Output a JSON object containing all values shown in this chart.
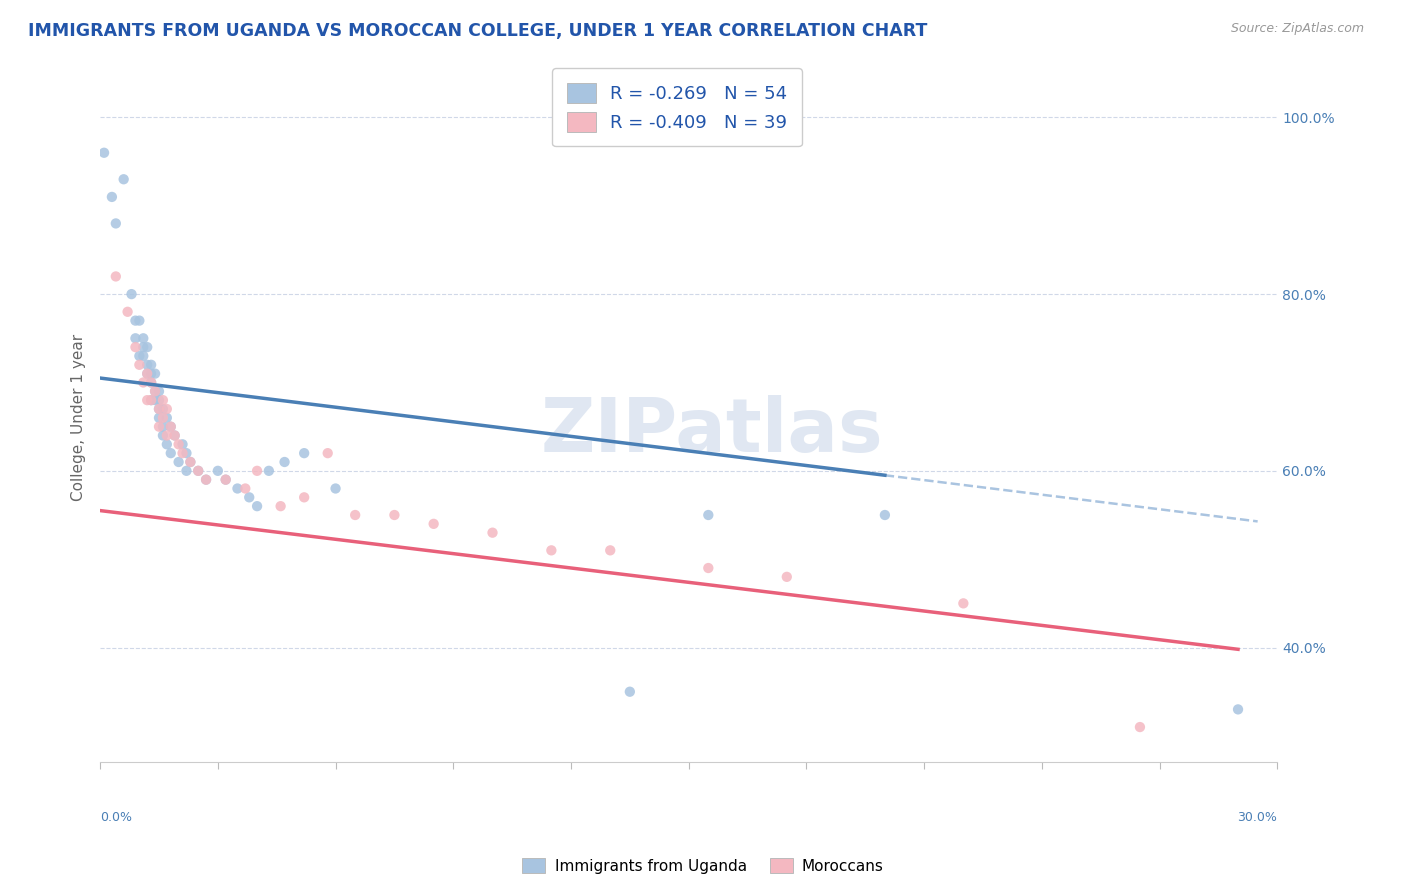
{
  "title": "IMMIGRANTS FROM UGANDA VS MOROCCAN COLLEGE, UNDER 1 YEAR CORRELATION CHART",
  "source": "Source: ZipAtlas.com",
  "legend_label1": "Immigrants from Uganda",
  "legend_label2": "Moroccans",
  "r1": -0.269,
  "n1": 54,
  "r2": -0.409,
  "n2": 39,
  "blue_color": "#a8c4e0",
  "pink_color": "#f4b8c1",
  "blue_line_color": "#4a7fb5",
  "pink_line_color": "#e8607a",
  "dash_color": "#aac4e0",
  "watermark": "ZIPatlas",
  "bg_color": "#ffffff",
  "grid_color": "#d0d8e8",
  "x_min": 0.0,
  "x_max": 0.3,
  "y_min": 0.27,
  "y_max": 1.05,
  "uganda_x": [
    0.001,
    0.003,
    0.004,
    0.006,
    0.008,
    0.009,
    0.009,
    0.01,
    0.01,
    0.011,
    0.011,
    0.011,
    0.012,
    0.012,
    0.012,
    0.013,
    0.013,
    0.013,
    0.013,
    0.014,
    0.014,
    0.014,
    0.015,
    0.015,
    0.015,
    0.015,
    0.016,
    0.016,
    0.016,
    0.017,
    0.017,
    0.018,
    0.018,
    0.019,
    0.02,
    0.021,
    0.022,
    0.022,
    0.023,
    0.025,
    0.027,
    0.03,
    0.032,
    0.035,
    0.038,
    0.04,
    0.043,
    0.047,
    0.052,
    0.06,
    0.135,
    0.155,
    0.2,
    0.29
  ],
  "uganda_y": [
    0.96,
    0.91,
    0.88,
    0.93,
    0.8,
    0.75,
    0.77,
    0.73,
    0.77,
    0.74,
    0.73,
    0.75,
    0.71,
    0.72,
    0.74,
    0.7,
    0.71,
    0.68,
    0.72,
    0.68,
    0.69,
    0.71,
    0.67,
    0.68,
    0.66,
    0.69,
    0.65,
    0.67,
    0.64,
    0.66,
    0.63,
    0.65,
    0.62,
    0.64,
    0.61,
    0.63,
    0.62,
    0.6,
    0.61,
    0.6,
    0.59,
    0.6,
    0.59,
    0.58,
    0.57,
    0.56,
    0.6,
    0.61,
    0.62,
    0.58,
    0.35,
    0.55,
    0.55,
    0.33
  ],
  "moroccan_x": [
    0.004,
    0.007,
    0.009,
    0.01,
    0.011,
    0.012,
    0.012,
    0.013,
    0.013,
    0.014,
    0.015,
    0.015,
    0.016,
    0.016,
    0.017,
    0.017,
    0.018,
    0.019,
    0.02,
    0.021,
    0.023,
    0.025,
    0.027,
    0.032,
    0.037,
    0.04,
    0.046,
    0.052,
    0.058,
    0.065,
    0.075,
    0.085,
    0.1,
    0.115,
    0.13,
    0.155,
    0.175,
    0.22,
    0.265
  ],
  "moroccan_y": [
    0.82,
    0.78,
    0.74,
    0.72,
    0.7,
    0.71,
    0.68,
    0.7,
    0.68,
    0.69,
    0.67,
    0.65,
    0.68,
    0.66,
    0.67,
    0.64,
    0.65,
    0.64,
    0.63,
    0.62,
    0.61,
    0.6,
    0.59,
    0.59,
    0.58,
    0.6,
    0.56,
    0.57,
    0.62,
    0.55,
    0.55,
    0.54,
    0.53,
    0.51,
    0.51,
    0.49,
    0.48,
    0.45,
    0.31
  ],
  "blue_line_x0": 0.0,
  "blue_line_y0": 0.705,
  "blue_line_x1": 0.2,
  "blue_line_y1": 0.595,
  "pink_line_x0": 0.0,
  "pink_line_y0": 0.555,
  "pink_line_x1": 0.29,
  "pink_line_y1": 0.398
}
